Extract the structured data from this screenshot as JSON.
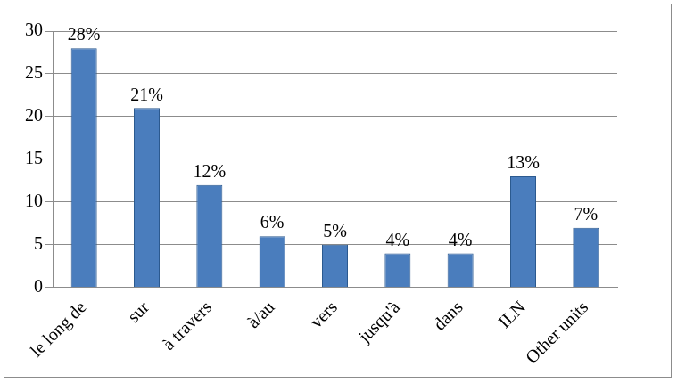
{
  "chart_data": {
    "type": "bar",
    "categories": [
      "le long de",
      "sur",
      "à travers",
      "à/au",
      "vers",
      "jusqu'à",
      "dans",
      "ILN",
      "Other units"
    ],
    "values": [
      28,
      21,
      12,
      6,
      5,
      4,
      4,
      13,
      7
    ],
    "value_labels": [
      "28%",
      "21%",
      "12%",
      "6%",
      "5%",
      "4%",
      "4%",
      "13%",
      "7%"
    ],
    "data_labels": true,
    "color": "#4a7dbd",
    "ylim": [
      0,
      30
    ],
    "yticks": [
      0,
      5,
      10,
      15,
      20,
      25,
      30
    ],
    "grid": true
  }
}
